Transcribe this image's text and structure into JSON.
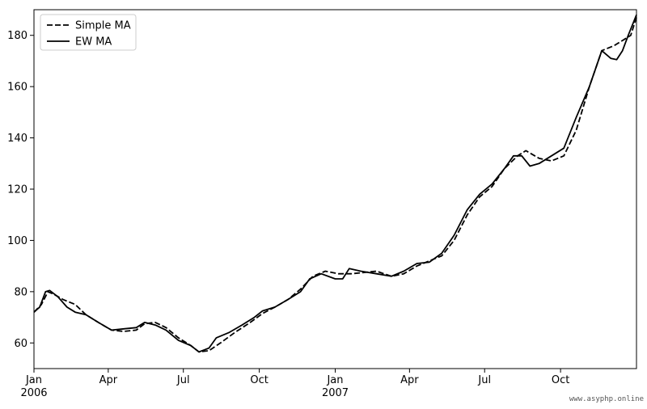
{
  "chart_data": {
    "type": "line",
    "title": "",
    "xlabel": "",
    "ylabel": "",
    "x_axis": {
      "kind": "date",
      "range": [
        "2006-01-01",
        "2008-01-01"
      ],
      "ticks": [
        {
          "date": "2006-01-01",
          "label": "Jan",
          "sublabel": "2006"
        },
        {
          "date": "2006-04-01",
          "label": "Apr",
          "sublabel": ""
        },
        {
          "date": "2006-07-01",
          "label": "Jul",
          "sublabel": ""
        },
        {
          "date": "2006-10-01",
          "label": "Oct",
          "sublabel": ""
        },
        {
          "date": "2007-01-01",
          "label": "Jan",
          "sublabel": "2007"
        },
        {
          "date": "2007-04-01",
          "label": "Apr",
          "sublabel": ""
        },
        {
          "date": "2007-07-01",
          "label": "Jul",
          "sublabel": ""
        },
        {
          "date": "2007-10-01",
          "label": "Oct",
          "sublabel": ""
        }
      ]
    },
    "y_axis": {
      "range": [
        50,
        190
      ],
      "ticks": [
        60,
        80,
        100,
        120,
        140,
        160,
        180
      ]
    },
    "grid": false,
    "legend_position": "top-left",
    "series": [
      {
        "name": "Simple MA",
        "style": "dashed",
        "color": "#000000",
        "points": [
          [
            "2006-01-01",
            72
          ],
          [
            "2006-01-10",
            75
          ],
          [
            "2006-01-18",
            80
          ],
          [
            "2006-01-25",
            79
          ],
          [
            "2006-02-05",
            77
          ],
          [
            "2006-02-20",
            75
          ],
          [
            "2006-03-05",
            71
          ],
          [
            "2006-03-20",
            68
          ],
          [
            "2006-04-05",
            65
          ],
          [
            "2006-04-20",
            64.5
          ],
          [
            "2006-05-05",
            65
          ],
          [
            "2006-05-15",
            67.5
          ],
          [
            "2006-05-28",
            68
          ],
          [
            "2006-06-10",
            66
          ],
          [
            "2006-06-25",
            62
          ],
          [
            "2006-07-10",
            59
          ],
          [
            "2006-07-20",
            56.5
          ],
          [
            "2006-08-01",
            57
          ],
          [
            "2006-08-15",
            60
          ],
          [
            "2006-09-01",
            64
          ],
          [
            "2006-09-20",
            68
          ],
          [
            "2006-10-05",
            71.5
          ],
          [
            "2006-10-20",
            74
          ],
          [
            "2006-11-05",
            77
          ],
          [
            "2006-11-20",
            81
          ],
          [
            "2006-12-05",
            86
          ],
          [
            "2006-12-20",
            88
          ],
          [
            "2007-01-05",
            87
          ],
          [
            "2007-01-20",
            87
          ],
          [
            "2007-02-05",
            87.5
          ],
          [
            "2007-02-20",
            88
          ],
          [
            "2007-03-10",
            86
          ],
          [
            "2007-03-25",
            87
          ],
          [
            "2007-04-10",
            90
          ],
          [
            "2007-04-25",
            92
          ],
          [
            "2007-05-10",
            94
          ],
          [
            "2007-05-25",
            100
          ],
          [
            "2007-06-10",
            110
          ],
          [
            "2007-06-25",
            117
          ],
          [
            "2007-07-10",
            121
          ],
          [
            "2007-07-25",
            128
          ],
          [
            "2007-08-10",
            133
          ],
          [
            "2007-08-20",
            135
          ],
          [
            "2007-09-05",
            132
          ],
          [
            "2007-09-20",
            131
          ],
          [
            "2007-10-05",
            133
          ],
          [
            "2007-10-20",
            143
          ],
          [
            "2007-11-05",
            160
          ],
          [
            "2007-11-20",
            174
          ],
          [
            "2007-12-05",
            176
          ],
          [
            "2007-12-15",
            178
          ],
          [
            "2007-12-25",
            180
          ],
          [
            "2008-01-01",
            187
          ]
        ]
      },
      {
        "name": "EW MA",
        "style": "solid",
        "color": "#000000",
        "points": [
          [
            "2006-01-01",
            72
          ],
          [
            "2006-01-08",
            74
          ],
          [
            "2006-01-15",
            80
          ],
          [
            "2006-01-20",
            80.5
          ],
          [
            "2006-01-30",
            78
          ],
          [
            "2006-02-10",
            74
          ],
          [
            "2006-02-20",
            72
          ],
          [
            "2006-03-05",
            71
          ],
          [
            "2006-03-20",
            68
          ],
          [
            "2006-04-05",
            65
          ],
          [
            "2006-04-20",
            65.5
          ],
          [
            "2006-05-05",
            66
          ],
          [
            "2006-05-15",
            68
          ],
          [
            "2006-05-28",
            67
          ],
          [
            "2006-06-10",
            65
          ],
          [
            "2006-06-25",
            61
          ],
          [
            "2006-07-10",
            59
          ],
          [
            "2006-07-20",
            56.5
          ],
          [
            "2006-08-01",
            58
          ],
          [
            "2006-08-10",
            62
          ],
          [
            "2006-08-25",
            64
          ],
          [
            "2006-09-10",
            67
          ],
          [
            "2006-09-25",
            70
          ],
          [
            "2006-10-05",
            72.5
          ],
          [
            "2006-10-20",
            74
          ],
          [
            "2006-11-05",
            77
          ],
          [
            "2006-11-20",
            80
          ],
          [
            "2006-12-01",
            85
          ],
          [
            "2006-12-15",
            87
          ],
          [
            "2007-01-01",
            85
          ],
          [
            "2007-01-10",
            85
          ],
          [
            "2007-01-18",
            89
          ],
          [
            "2007-02-01",
            88
          ],
          [
            "2007-02-20",
            87
          ],
          [
            "2007-03-10",
            86
          ],
          [
            "2007-03-25",
            88
          ],
          [
            "2007-04-10",
            91
          ],
          [
            "2007-04-25",
            91.5
          ],
          [
            "2007-05-10",
            95
          ],
          [
            "2007-05-25",
            102
          ],
          [
            "2007-06-10",
            112
          ],
          [
            "2007-06-25",
            118
          ],
          [
            "2007-07-10",
            122
          ],
          [
            "2007-07-25",
            128
          ],
          [
            "2007-08-05",
            133
          ],
          [
            "2007-08-15",
            133
          ],
          [
            "2007-08-25",
            129
          ],
          [
            "2007-09-05",
            130
          ],
          [
            "2007-09-20",
            133
          ],
          [
            "2007-10-05",
            136
          ],
          [
            "2007-10-20",
            148
          ],
          [
            "2007-11-05",
            160
          ],
          [
            "2007-11-20",
            174
          ],
          [
            "2007-12-01",
            171
          ],
          [
            "2007-12-08",
            170.5
          ],
          [
            "2007-12-15",
            174
          ],
          [
            "2007-12-22",
            180
          ],
          [
            "2008-01-01",
            188
          ]
        ]
      }
    ]
  },
  "watermark": "www.asyphp.online"
}
